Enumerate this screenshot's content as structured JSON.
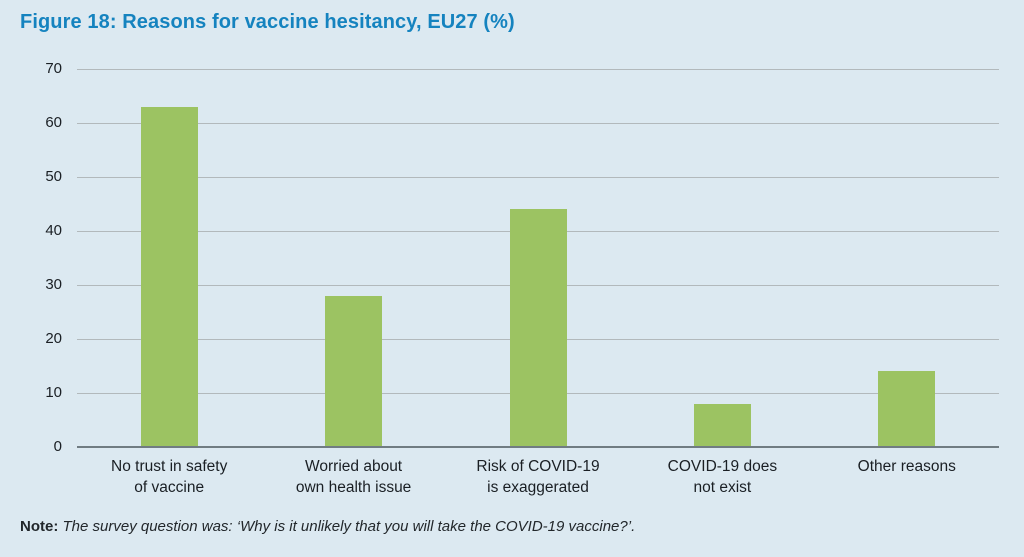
{
  "page": {
    "background_color": "#dce9f1",
    "title_color": "#1583bf",
    "text_color": "#1a1f24"
  },
  "chart_data": {
    "type": "bar",
    "title": "Figure 18: Reasons for vaccine hesitancy, EU27 (%)",
    "categories": [
      "No trust in safety\nof vaccine",
      "Worried about\nown health issue",
      "Risk of COVID-19\nis exaggerated",
      "COVID-19 does\nnot exist",
      "Other reasons"
    ],
    "values": [
      63,
      28,
      44,
      8,
      14
    ],
    "xlabel": "",
    "ylabel": "",
    "ylim": [
      0,
      70
    ],
    "yticks": [
      0,
      10,
      20,
      30,
      40,
      50,
      60,
      70
    ],
    "grid": true,
    "legend": "none",
    "bar_color": "#9cc362",
    "gridline_color": "#b2b9bc",
    "axis_line_color": "#707c82"
  },
  "note": {
    "label": "Note:",
    "text": " The survey question was: ‘Why is it unlikely that you will take the COVID-19 vaccine?’."
  }
}
